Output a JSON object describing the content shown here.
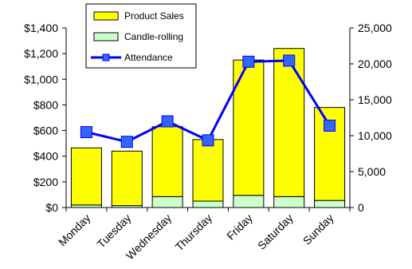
{
  "chart_data": {
    "type": "bar",
    "categories": [
      "Monday",
      "Tuesday",
      "Wednesday",
      "Thursday",
      "Friday",
      "Saturday",
      "Sunday"
    ],
    "series": [
      {
        "name": "Product Sales",
        "type": "bar",
        "stack": "sales",
        "axis": "left",
        "color": "#ffff00",
        "values": [
          445,
          425,
          545,
          480,
          1055,
          1155,
          725
        ]
      },
      {
        "name": "Candle-rolling",
        "type": "bar",
        "stack": "sales",
        "axis": "left",
        "color": "#ccffcc",
        "values": [
          20,
          15,
          85,
          50,
          95,
          85,
          55
        ]
      },
      {
        "name": "Attendance",
        "type": "line",
        "axis": "right",
        "color": "#0000ff",
        "marker": "square",
        "marker_color": "#3366ff",
        "values": [
          10500,
          9150,
          12000,
          9350,
          20300,
          20450,
          11400
        ]
      }
    ],
    "y_left": {
      "ylim": [
        0,
        1400
      ],
      "ticks": [
        0,
        200,
        400,
        600,
        800,
        1000,
        1200,
        1400
      ],
      "tick_labels": [
        "$0",
        "$200",
        "$400",
        "$600",
        "$800",
        "$1,000",
        "$1,200",
        "$1,400"
      ]
    },
    "y_right": {
      "ylim": [
        0,
        25000
      ],
      "ticks": [
        0,
        5000,
        10000,
        15000,
        20000,
        25000
      ],
      "tick_labels": [
        "0",
        "5,000",
        "10,000",
        "15,000",
        "20,000",
        "25,000"
      ]
    },
    "grid": false,
    "legend": {
      "position": "top-left",
      "entries": [
        "Product Sales",
        "Candle-rolling",
        "Attendance"
      ]
    }
  }
}
